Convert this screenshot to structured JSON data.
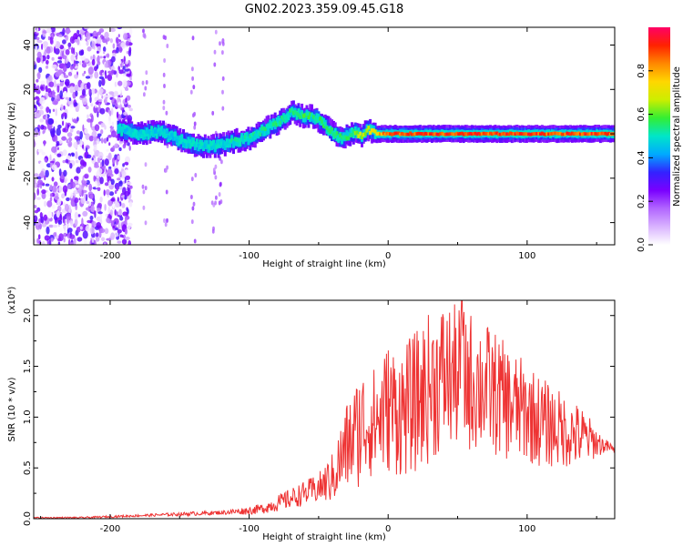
{
  "figure_title": "GN02.2023.359.09.45.G18",
  "colors": {
    "snr_line": "#ee3333",
    "axes": "#000000",
    "colormap": [
      "#ffffff",
      "#d9b3ff",
      "#b266ff",
      "#7a00ff",
      "#3322ff",
      "#00aaff",
      "#00e6c8",
      "#33ee33",
      "#ccee00",
      "#ffd700",
      "#ff8800",
      "#ff2200",
      "#ff0066"
    ]
  },
  "chart_data": [
    {
      "type": "heatmap",
      "title": "GN02.2023.359.09.45.G18",
      "xlabel": "Height of straight line (km)",
      "ylabel": "Frequency (Hz)",
      "xlim": [
        -255,
        163
      ],
      "ylim": [
        -50,
        48
      ],
      "xticks": [
        -200,
        -100,
        0,
        100
      ],
      "xtick_labels": [
        "-200",
        "-100",
        "0",
        "100"
      ],
      "yticks": [
        -40,
        -20,
        0,
        20,
        40
      ],
      "ytick_labels": [
        "-40",
        "-20",
        "0",
        "20",
        "40"
      ],
      "colorbar": {
        "label": "Normalized spectral amplitude",
        "range": [
          0,
          1
        ],
        "ticks": [
          0.0,
          0.2,
          0.4,
          0.6,
          0.8
        ],
        "tick_labels": [
          "0.0",
          "0.2",
          "0.4",
          "0.6",
          "0.8"
        ]
      },
      "ridge_frequency_hz": {
        "x": [
          -195,
          -180,
          -165,
          -150,
          -140,
          -130,
          -120,
          -110,
          -100,
          -90,
          -80,
          -70,
          -62,
          -55,
          -48,
          -40,
          -35,
          -30,
          -25,
          -20,
          -15,
          -10,
          0,
          20,
          60,
          100,
          163
        ],
        "y": [
          2,
          0,
          1,
          -3,
          -5,
          -6,
          -5,
          -3,
          -2,
          2,
          5,
          10,
          8,
          8,
          5,
          0,
          -2,
          -1,
          1,
          -1,
          2,
          0,
          0,
          0,
          0,
          0,
          0
        ]
      },
      "ridge_peak_amplitude": {
        "x": [
          -195,
          -150,
          -100,
          -60,
          -30,
          -10,
          0,
          50,
          100,
          163
        ],
        "y": [
          0.5,
          0.5,
          0.55,
          0.6,
          0.6,
          0.8,
          0.95,
          0.95,
          0.95,
          0.95
        ]
      },
      "scatter_noise_region_km": [
        -255,
        -185
      ]
    },
    {
      "type": "line",
      "xlabel": "Height of straight line (km)",
      "ylabel": "SNR (10 * v/v)",
      "y_multiplier_label": "(x10⁴)",
      "xlim": [
        -255,
        163
      ],
      "ylim": [
        0,
        2.15
      ],
      "xticks": [
        -200,
        -100,
        0,
        100
      ],
      "xtick_labels": [
        "-200",
        "-100",
        "0",
        "100"
      ],
      "yticks": [
        0.0,
        0.5,
        1.0,
        1.5,
        2.0
      ],
      "ytick_labels": [
        "0.0",
        "0.5",
        "1.0",
        "1.5",
        "2.0"
      ],
      "series": [
        {
          "x": [
            -255,
            -220,
            -200,
            -180,
            -160,
            -140,
            -120,
            -100,
            -90,
            -80,
            -70,
            -60,
            -50,
            -40,
            -35,
            -30,
            -25,
            -20,
            -15,
            -10,
            -5,
            0,
            10,
            20,
            30,
            40,
            50,
            60,
            70,
            80,
            90,
            100,
            110,
            120,
            130,
            140,
            145,
            150,
            155,
            160,
            163
          ],
          "y": [
            0.01,
            0.01,
            0.02,
            0.03,
            0.04,
            0.05,
            0.06,
            0.08,
            0.1,
            0.15,
            0.2,
            0.25,
            0.3,
            0.4,
            0.55,
            0.7,
            0.8,
            0.9,
            0.95,
            0.95,
            1.0,
            1.1,
            1.05,
            1.15,
            1.3,
            1.4,
            1.4,
            1.35,
            1.3,
            1.2,
            1.1,
            1.05,
            0.95,
            0.9,
            0.85,
            0.8,
            0.78,
            0.75,
            0.72,
            0.7,
            0.67
          ],
          "spread": [
            0.005,
            0.008,
            0.01,
            0.012,
            0.015,
            0.02,
            0.02,
            0.04,
            0.05,
            0.08,
            0.1,
            0.12,
            0.15,
            0.25,
            0.35,
            0.45,
            0.5,
            0.6,
            0.55,
            0.55,
            0.6,
            0.65,
            0.65,
            0.7,
            0.75,
            0.75,
            0.7,
            0.7,
            0.65,
            0.6,
            0.55,
            0.5,
            0.45,
            0.4,
            0.35,
            0.3,
            0.22,
            0.15,
            0.08,
            0.05,
            0.03
          ],
          "max": 2.15,
          "max_at_km": 53
        }
      ]
    }
  ]
}
